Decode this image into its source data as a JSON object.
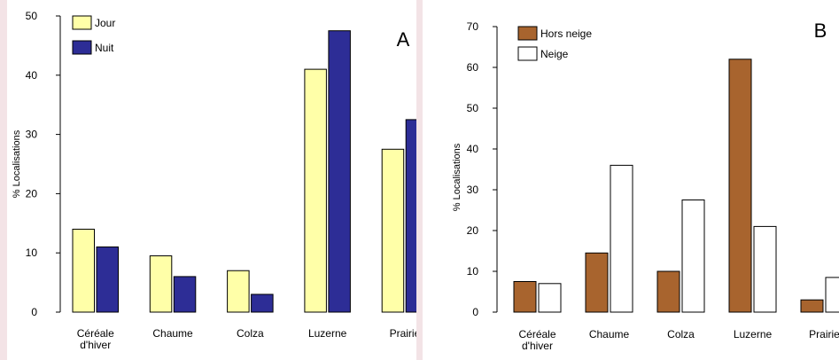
{
  "chart_data": [
    {
      "type": "bar",
      "panel_label": "A",
      "ylabel": "% Localisations",
      "ylim": [
        0,
        50
      ],
      "yticks": [
        0,
        10,
        20,
        30,
        40,
        50
      ],
      "categories": [
        "Céréale d'hiver",
        "Chaume",
        "Colza",
        "Luzerne",
        "Prairie"
      ],
      "category_lines": [
        [
          "Céréale",
          "d'hiver"
        ],
        [
          "Chaume"
        ],
        [
          "Colza"
        ],
        [
          "Luzerne"
        ],
        [
          "Prairie"
        ]
      ],
      "series": [
        {
          "name": "Jour",
          "color": "#ffffa8",
          "values": [
            14,
            9.5,
            7,
            41,
            27.5
          ]
        },
        {
          "name": "Nuit",
          "color": "#2d2d96",
          "values": [
            11,
            6,
            3,
            47.5,
            32.5
          ]
        }
      ],
      "legend_position": "top-left",
      "grid": false
    },
    {
      "type": "bar",
      "panel_label": "B",
      "ylabel": "% Localisations",
      "ylim": [
        0,
        70
      ],
      "yticks": [
        0,
        10,
        20,
        30,
        40,
        50,
        60,
        70
      ],
      "categories": [
        "Céréale d'hiver",
        "Chaume",
        "Colza",
        "Luzerne",
        "Prairie"
      ],
      "category_lines": [
        [
          "Céréale",
          "d'hiver"
        ],
        [
          "Chaume"
        ],
        [
          "Colza"
        ],
        [
          "Luzerne"
        ],
        [
          "Prairie"
        ]
      ],
      "series": [
        {
          "name": "Hors neige",
          "color": "#a8642e",
          "values": [
            7.5,
            14.5,
            10,
            62,
            3
          ]
        },
        {
          "name": "Neige",
          "color": "#ffffff",
          "values": [
            7,
            36,
            27.5,
            21,
            8.5
          ]
        }
      ],
      "legend_position": "top-left",
      "grid": false
    }
  ]
}
